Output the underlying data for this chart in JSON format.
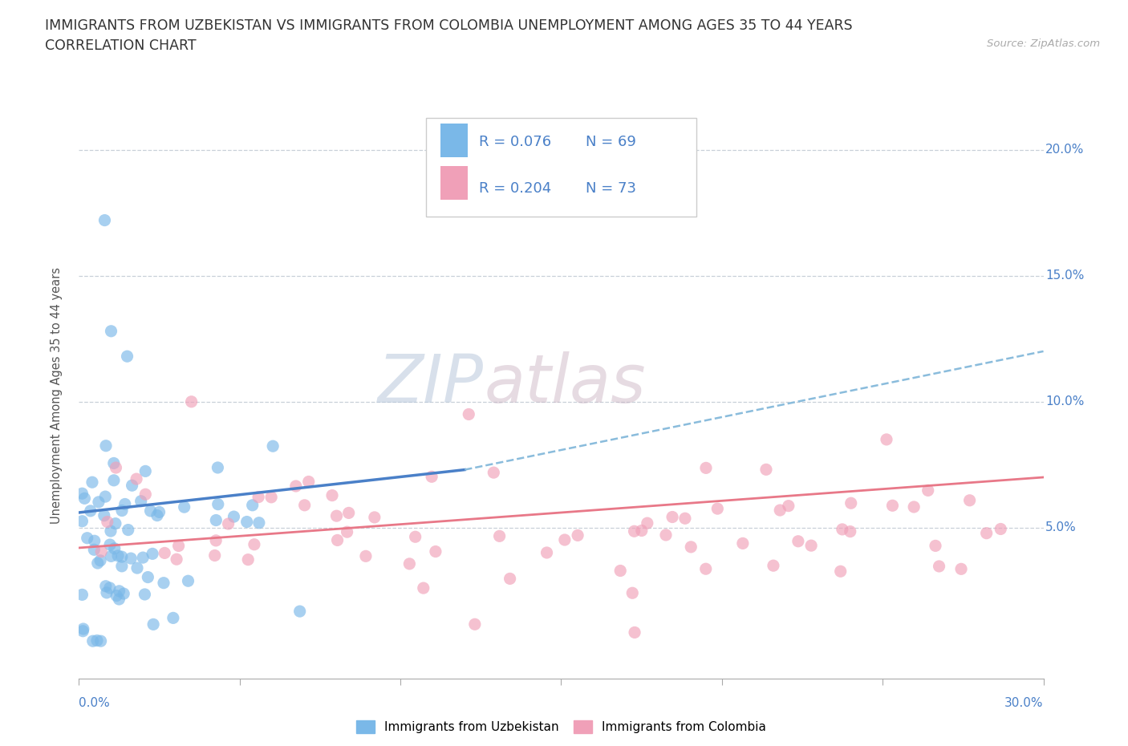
{
  "title_line1": "IMMIGRANTS FROM UZBEKISTAN VS IMMIGRANTS FROM COLOMBIA UNEMPLOYMENT AMONG AGES 35 TO 44 YEARS",
  "title_line2": "CORRELATION CHART",
  "source_text": "Source: ZipAtlas.com",
  "ylabel": "Unemployment Among Ages 35 to 44 years",
  "xlim": [
    0.0,
    0.3
  ],
  "ylim": [
    -0.01,
    0.215
  ],
  "yticks": [
    0.0,
    0.05,
    0.1,
    0.15,
    0.2
  ],
  "ytick_labels": [
    "",
    "5.0%",
    "10.0%",
    "15.0%",
    "20.0%"
  ],
  "color_uzbekistan": "#7ab8e8",
  "color_colombia": "#f0a0b8",
  "color_uzbekistan_line_solid": "#4a80c8",
  "color_uzbekistan_line_dash": "#8abcdc",
  "color_colombia_line": "#e87888",
  "r1": "0.076",
  "n1": "69",
  "r2": "0.204",
  "n2": "73",
  "watermark_zip": "ZIP",
  "watermark_atlas": "atlas",
  "legend_label1": "Immigrants from Uzbekistan",
  "legend_label2": "Immigrants from Colombia",
  "tick_color": "#4a80c8",
  "title_fontsize": 12.5,
  "axis_label_color": "#4a80c8"
}
